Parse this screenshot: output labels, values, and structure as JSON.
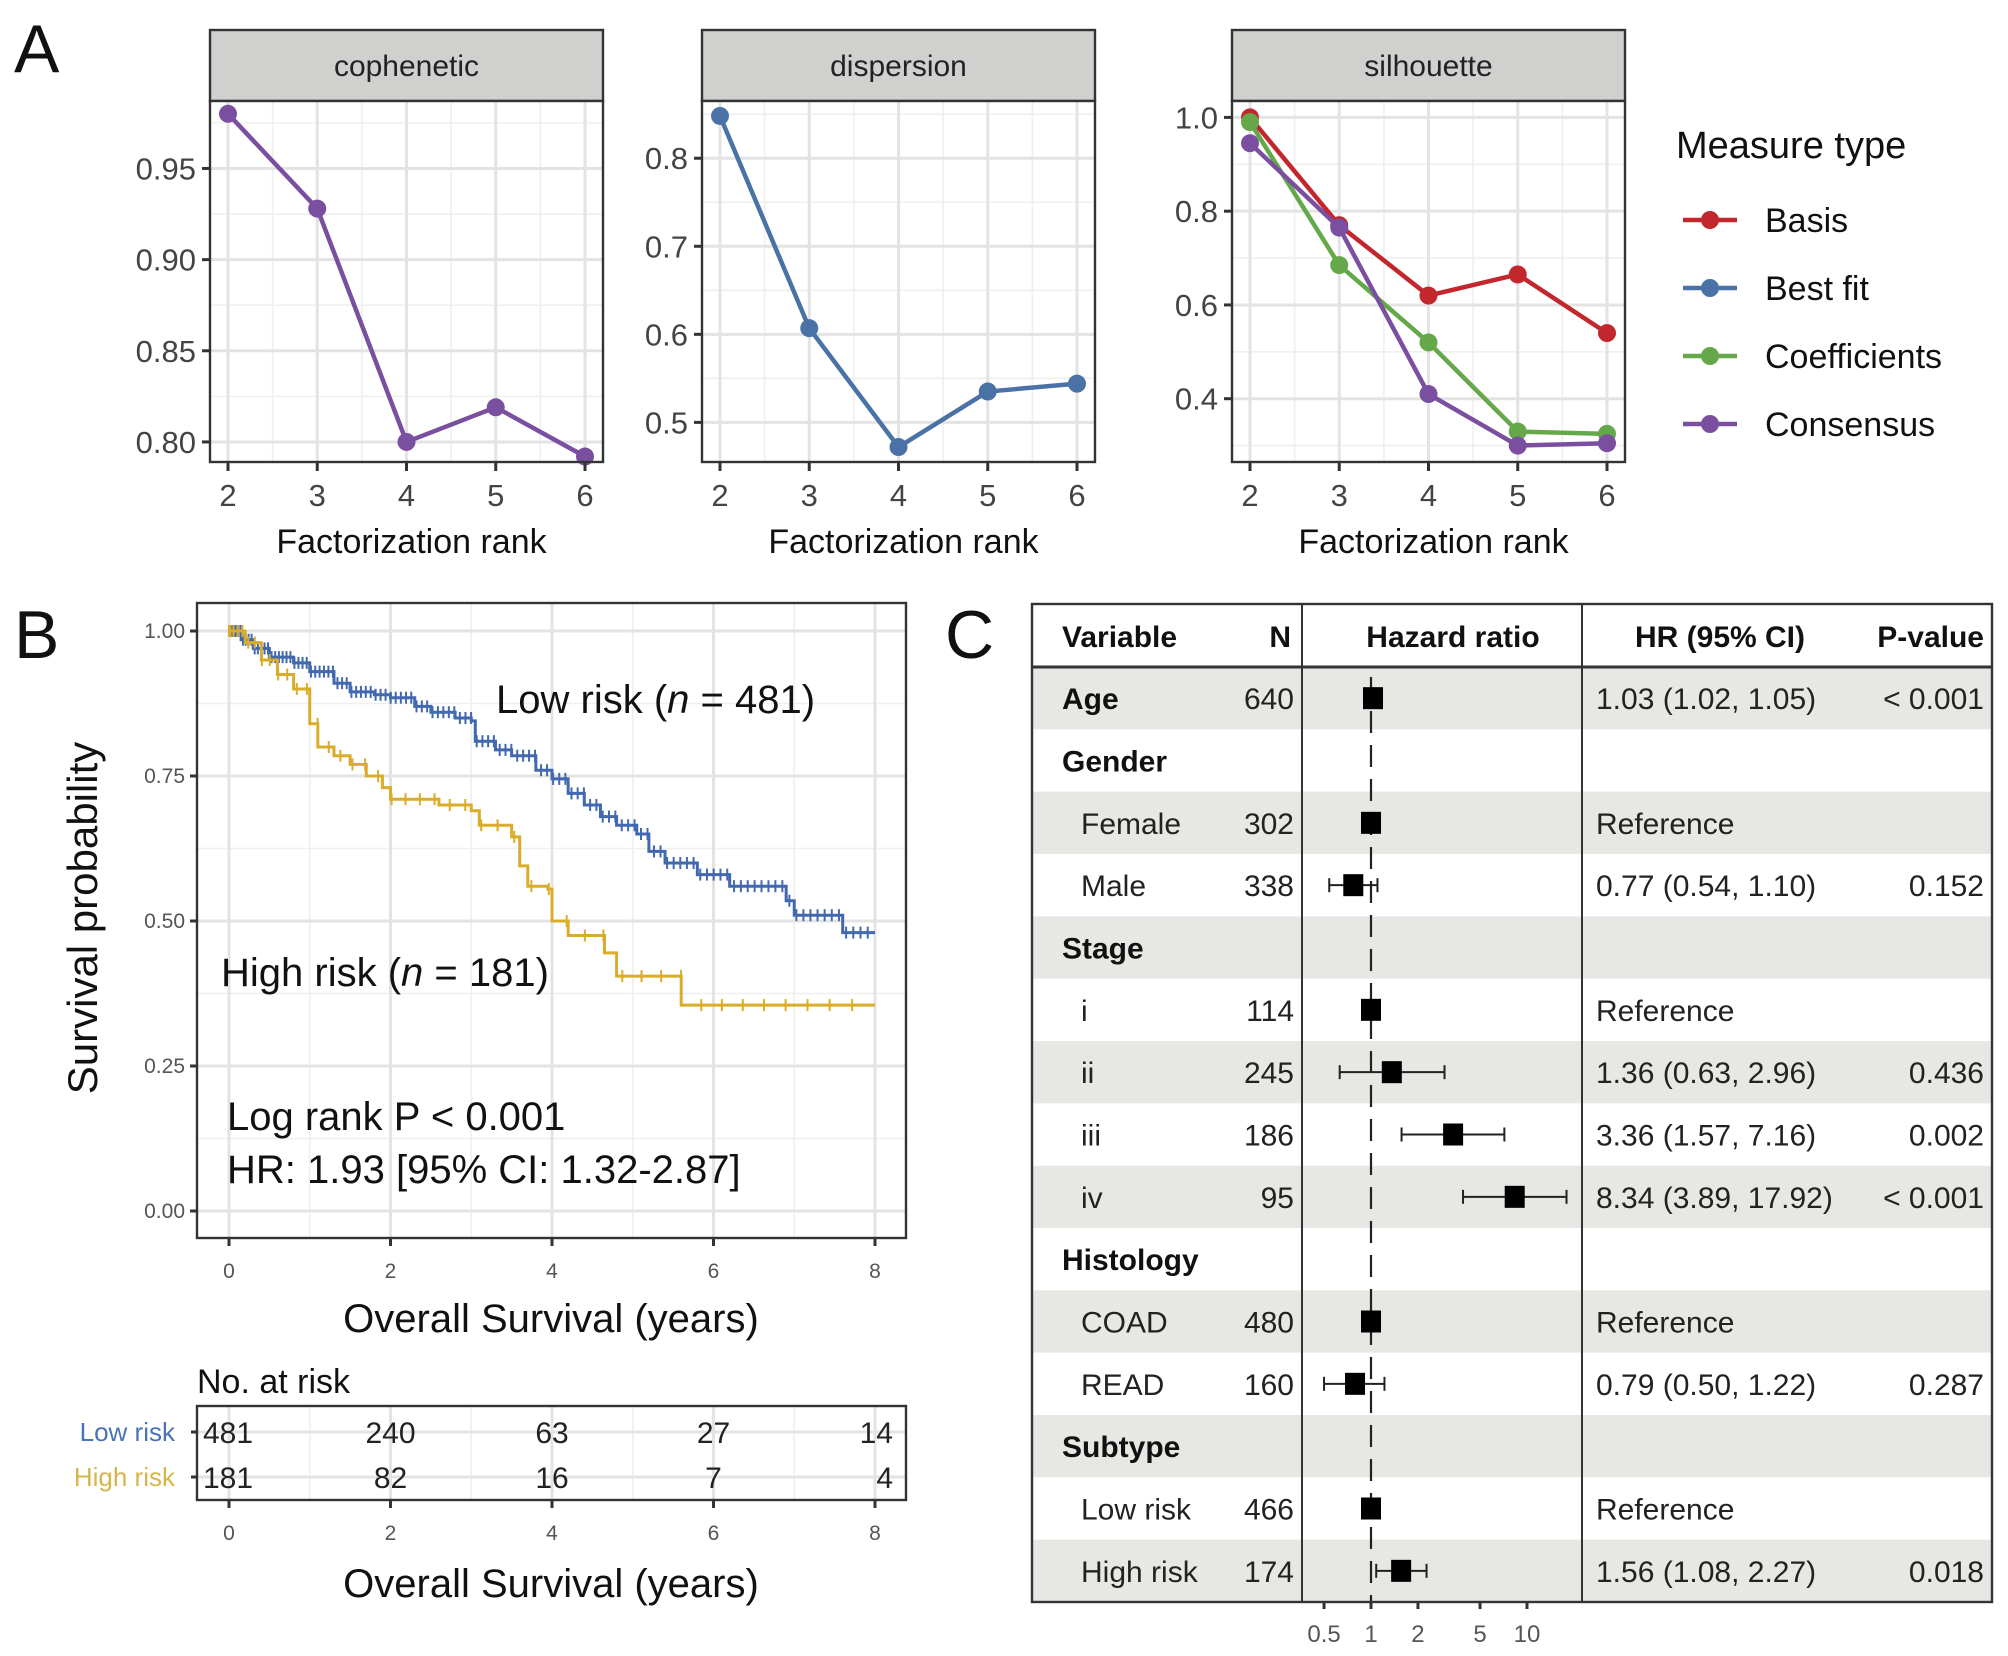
{
  "panel_labels": {
    "a": "A",
    "b": "B",
    "c": "C"
  },
  "chart_data": [
    {
      "id": "nmf_rank_survey",
      "type": "line",
      "facets": [
        "cophenetic",
        "dispersion",
        "silhouette"
      ],
      "x": [
        2,
        3,
        4,
        5,
        6
      ],
      "xlabel": "Factorization rank",
      "xticks": [
        "2",
        "3",
        "4",
        "5",
        "6"
      ],
      "legend": {
        "title": "Measure type",
        "position": "right",
        "entries": [
          {
            "name": "Basis",
            "color": "#c1272d"
          },
          {
            "name": "Best fit",
            "color": "#4a72a6"
          },
          {
            "name": "Coefficients",
            "color": "#65a84a"
          },
          {
            "name": "Consensus",
            "color": "#7b4fa0"
          }
        ]
      },
      "panels": [
        {
          "facet": "cophenetic",
          "ylim": [
            0.789,
            0.987
          ],
          "yticks": [
            0.8,
            0.85,
            0.9,
            0.95
          ],
          "ytick_labels": [
            "0.80",
            "0.85",
            "0.90",
            "0.95"
          ],
          "series": [
            {
              "name": "Consensus",
              "color": "#7b4fa0",
              "values": [
                0.98,
                0.928,
                0.8,
                0.819,
                0.792
              ]
            }
          ]
        },
        {
          "facet": "dispersion",
          "ylim": [
            0.455,
            0.865
          ],
          "yticks": [
            0.5,
            0.6,
            0.7,
            0.8
          ],
          "ytick_labels": [
            "0.5",
            "0.6",
            "0.7",
            "0.8"
          ],
          "series": [
            {
              "name": "Best fit",
              "color": "#4a72a6",
              "values": [
                0.848,
                0.607,
                0.472,
                0.535,
                0.544
              ]
            }
          ]
        },
        {
          "facet": "silhouette",
          "ylim": [
            0.265,
            1.035
          ],
          "yticks": [
            0.4,
            0.6,
            0.8,
            1.0
          ],
          "ytick_labels": [
            "0.4",
            "0.6",
            "0.8",
            "1.0"
          ],
          "series": [
            {
              "name": "Basis",
              "color": "#c1272d",
              "values": [
                1.0,
                0.77,
                0.62,
                0.665,
                0.54
              ]
            },
            {
              "name": "Coefficients",
              "color": "#65a84a",
              "values": [
                0.99,
                0.685,
                0.52,
                0.33,
                0.325
              ]
            },
            {
              "name": "Consensus",
              "color": "#7b4fa0",
              "values": [
                0.945,
                0.765,
                0.41,
                0.3,
                0.305
              ]
            }
          ]
        }
      ]
    },
    {
      "id": "kaplan_meier",
      "type": "line",
      "xlabel": "Overall Survival (years)",
      "ylabel": "Survival probability",
      "xlim": [
        0,
        8
      ],
      "ylim": [
        0,
        1
      ],
      "xticks": [
        "0",
        "2",
        "4",
        "6",
        "8"
      ],
      "yticks": [
        "0.00",
        "0.25",
        "0.50",
        "0.75",
        "1.00"
      ],
      "series": [
        {
          "name": "Low risk",
          "n": 481,
          "label": "Low risk (n = 481)",
          "color": "#4268b0",
          "steps": [
            [
              0,
              1.0
            ],
            [
              0.15,
              0.985
            ],
            [
              0.3,
              0.97
            ],
            [
              0.5,
              0.955
            ],
            [
              0.8,
              0.945
            ],
            [
              1,
              0.93
            ],
            [
              1.3,
              0.91
            ],
            [
              1.5,
              0.895
            ],
            [
              1.8,
              0.89
            ],
            [
              2,
              0.885
            ],
            [
              2.3,
              0.87
            ],
            [
              2.5,
              0.86
            ],
            [
              2.8,
              0.85
            ],
            [
              3,
              0.845
            ],
            [
              3.05,
              0.81
            ],
            [
              3.3,
              0.795
            ],
            [
              3.5,
              0.785
            ],
            [
              3.8,
              0.76
            ],
            [
              4,
              0.745
            ],
            [
              4.2,
              0.72
            ],
            [
              4.4,
              0.7
            ],
            [
              4.6,
              0.68
            ],
            [
              4.8,
              0.665
            ],
            [
              5.05,
              0.65
            ],
            [
              5.2,
              0.62
            ],
            [
              5.4,
              0.6
            ],
            [
              5.8,
              0.58
            ],
            [
              6.2,
              0.56
            ],
            [
              6.9,
              0.535
            ],
            [
              7.0,
              0.51
            ],
            [
              7.6,
              0.48
            ],
            [
              8,
              0.48
            ]
          ]
        },
        {
          "name": "High risk",
          "n": 181,
          "label": "High risk (n = 181)",
          "color": "#d9ac2a",
          "steps": [
            [
              0,
              1.0
            ],
            [
              0.2,
              0.98
            ],
            [
              0.4,
              0.95
            ],
            [
              0.6,
              0.925
            ],
            [
              0.8,
              0.9
            ],
            [
              1.0,
              0.84
            ],
            [
              1.1,
              0.8
            ],
            [
              1.3,
              0.785
            ],
            [
              1.5,
              0.77
            ],
            [
              1.7,
              0.75
            ],
            [
              1.9,
              0.73
            ],
            [
              2.0,
              0.71
            ],
            [
              2.6,
              0.7
            ],
            [
              3.0,
              0.69
            ],
            [
              3.1,
              0.665
            ],
            [
              3.5,
              0.645
            ],
            [
              3.6,
              0.595
            ],
            [
              3.7,
              0.56
            ],
            [
              3.95,
              0.555
            ],
            [
              4.0,
              0.5
            ],
            [
              4.2,
              0.475
            ],
            [
              4.65,
              0.445
            ],
            [
              4.8,
              0.405
            ],
            [
              5.6,
              0.405
            ],
            [
              5.6,
              0.355
            ],
            [
              8,
              0.355
            ]
          ]
        }
      ],
      "annotations": {
        "logrank": "Log rank P < 0.001",
        "hr": "HR: 1.93 [95% CI: 1.32-2.87]"
      },
      "risk_table": {
        "title": "No. at risk",
        "xlabel": "Overall Survival (years)",
        "times": [
          0,
          2,
          4,
          6,
          8
        ],
        "rows": [
          {
            "label": "Low risk",
            "color": "#4a72b8",
            "counts": [
              "481",
              "240",
              "63",
              "27",
              "14"
            ]
          },
          {
            "label": "High risk",
            "color": "#d6b64a",
            "counts": [
              "181",
              "82",
              "16",
              "7",
              "4"
            ]
          }
        ]
      }
    },
    {
      "id": "forest_plot",
      "type": "table",
      "headers": {
        "variable": "Variable",
        "n": "N",
        "plot": "Hazard ratio",
        "hr": "HR (95% CI)",
        "p": "P-value"
      },
      "xscale": "log",
      "xticks": [
        0.5,
        1,
        2,
        5,
        10
      ],
      "xtick_labels": [
        "0.5",
        "1",
        "2",
        "5",
        "10"
      ],
      "rows": [
        {
          "variable": "Age",
          "bold": true,
          "n": "640",
          "hr": 1.03,
          "lo": 1.02,
          "hi": 1.05,
          "hr_text": "1.03 (1.02, 1.05)",
          "p": "< 0.001"
        },
        {
          "variable": "Gender",
          "bold": true,
          "n": "",
          "hr": null,
          "hr_text": "",
          "p": ""
        },
        {
          "variable": "Female",
          "bold": false,
          "n": "302",
          "hr": 1.0,
          "lo": 1.0,
          "hi": 1.0,
          "hr_text": "Reference",
          "p": ""
        },
        {
          "variable": "Male",
          "bold": false,
          "n": "338",
          "hr": 0.77,
          "lo": 0.54,
          "hi": 1.1,
          "hr_text": "0.77 (0.54, 1.10)",
          "p": "0.152"
        },
        {
          "variable": "Stage",
          "bold": true,
          "n": "",
          "hr": null,
          "hr_text": "",
          "p": ""
        },
        {
          "variable": "i",
          "bold": false,
          "n": "114",
          "hr": 1.0,
          "lo": 1.0,
          "hi": 1.0,
          "hr_text": "Reference",
          "p": ""
        },
        {
          "variable": "ii",
          "bold": false,
          "n": "245",
          "hr": 1.36,
          "lo": 0.63,
          "hi": 2.96,
          "hr_text": "1.36 (0.63, 2.96)",
          "p": "0.436"
        },
        {
          "variable": "iii",
          "bold": false,
          "n": "186",
          "hr": 3.36,
          "lo": 1.57,
          "hi": 7.16,
          "hr_text": "3.36 (1.57, 7.16)",
          "p": "0.002"
        },
        {
          "variable": "iv",
          "bold": false,
          "n": "95",
          "hr": 8.34,
          "lo": 3.89,
          "hi": 17.92,
          "hr_text": "8.34 (3.89, 17.92)",
          "p": "< 0.001"
        },
        {
          "variable": "Histology",
          "bold": true,
          "n": "",
          "hr": null,
          "hr_text": "",
          "p": ""
        },
        {
          "variable": "COAD",
          "bold": false,
          "n": "480",
          "hr": 1.0,
          "lo": 1.0,
          "hi": 1.0,
          "hr_text": "Reference",
          "p": ""
        },
        {
          "variable": "READ",
          "bold": false,
          "n": "160",
          "hr": 0.79,
          "lo": 0.5,
          "hi": 1.22,
          "hr_text": "0.79 (0.50, 1.22)",
          "p": "0.287"
        },
        {
          "variable": "Subtype",
          "bold": true,
          "n": "",
          "hr": null,
          "hr_text": "",
          "p": ""
        },
        {
          "variable": "Low risk",
          "bold": false,
          "n": "466",
          "hr": 1.0,
          "lo": 1.0,
          "hi": 1.0,
          "hr_text": "Reference",
          "p": ""
        },
        {
          "variable": "High risk",
          "bold": false,
          "n": "174",
          "hr": 1.56,
          "lo": 1.08,
          "hi": 2.27,
          "hr_text": "1.56 (1.08, 2.27)",
          "p": "0.018"
        }
      ]
    }
  ]
}
